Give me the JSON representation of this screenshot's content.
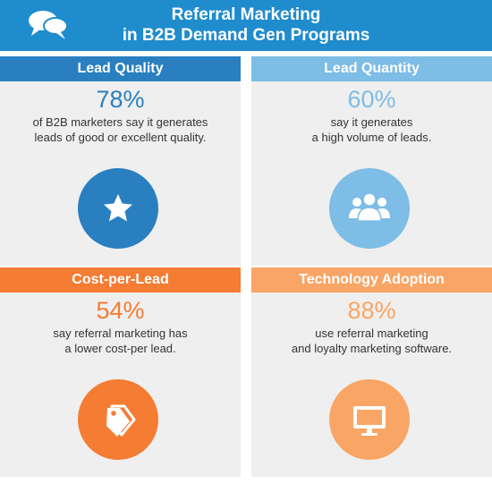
{
  "header": {
    "icon": "speech-bubbles-icon",
    "title_line1": "Referral Marketing",
    "title_line2": "in B2B Demand Gen Programs",
    "color": "#1f8ccd"
  },
  "panels": [
    {
      "heading": "Lead Quality",
      "stat": "78%",
      "desc_line1": "of B2B marketers say it generates",
      "desc_line2": "leads of good or excellent quality.",
      "icon": "star-icon",
      "color": "#2a7fc0"
    },
    {
      "heading": "Lead Quantity",
      "stat": "60%",
      "desc_line1": "say it generates",
      "desc_line2": "a high volume of leads.",
      "icon": "people-group-icon",
      "color": "#7dbde6"
    },
    {
      "heading": "Cost-per-Lead",
      "stat": "54%",
      "desc_line1": "say referral marketing has",
      "desc_line2": "a lower cost-per lead.",
      "icon": "price-tags-icon",
      "color": "#f47c33"
    },
    {
      "heading": "Technology Adoption",
      "stat": "88%",
      "desc_line1": "use referral marketing",
      "desc_line2": "and loyalty marketing software.",
      "icon": "monitor-icon",
      "color": "#f8a565"
    }
  ]
}
